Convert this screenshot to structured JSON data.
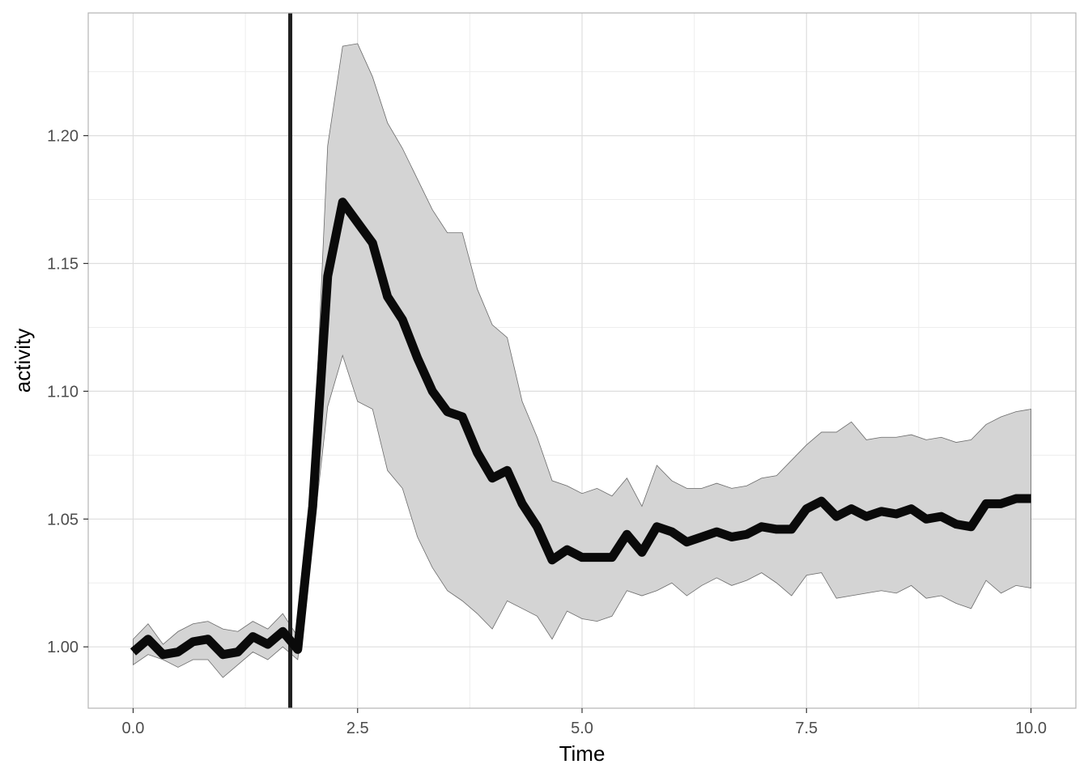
{
  "chart_data": {
    "type": "line",
    "title": "",
    "xlabel": "Time",
    "ylabel": "activity",
    "xlim": [
      -0.5,
      10.5
    ],
    "ylim": [
      0.976,
      1.248
    ],
    "x_ticks": [
      0.0,
      2.5,
      5.0,
      7.5,
      10.0
    ],
    "x_tick_labels": [
      "0.0",
      "2.5",
      "5.0",
      "7.5",
      "10.0"
    ],
    "y_ticks": [
      1.0,
      1.05,
      1.1,
      1.15,
      1.2
    ],
    "y_tick_labels": [
      "1.00",
      "1.05",
      "1.10",
      "1.15",
      "1.20"
    ],
    "grid": true,
    "vline": 1.75,
    "colors": {
      "line": "#0a0a0a",
      "ribbon_fill": "#d4d4d4",
      "ribbon_edge": "#6b6b6b",
      "vline": "#1f1f1f",
      "grid": "#dedede",
      "panel_border": "#b3b3b3"
    },
    "series": [
      {
        "x": [
          0.0,
          0.1667,
          0.3333,
          0.5,
          0.6667,
          0.8333,
          1.0,
          1.1667,
          1.3333,
          1.5,
          1.6667,
          1.8333,
          2.0,
          2.1667,
          2.3333,
          2.5,
          2.6667,
          2.8333,
          3.0,
          3.1667,
          3.3333,
          3.5,
          3.6667,
          3.8333,
          4.0,
          4.1667,
          4.3333,
          4.5,
          4.6667,
          4.8333,
          5.0,
          5.1667,
          5.3333,
          5.5,
          5.6667,
          5.8333,
          6.0,
          6.1667,
          6.3333,
          6.5,
          6.6667,
          6.8333,
          7.0,
          7.1667,
          7.3333,
          7.5,
          7.6667,
          7.8333,
          8.0,
          8.1667,
          8.3333,
          8.5,
          8.6667,
          8.8333,
          9.0,
          9.1667,
          9.3333,
          9.5,
          9.6667,
          9.8333,
          10.0
        ],
        "y": [
          0.998,
          1.003,
          0.997,
          0.998,
          1.002,
          1.003,
          0.997,
          0.998,
          1.004,
          1.001,
          1.006,
          0.999,
          1.055,
          1.145,
          1.174,
          1.166,
          1.158,
          1.137,
          1.128,
          1.113,
          1.1,
          1.092,
          1.09,
          1.076,
          1.066,
          1.069,
          1.056,
          1.047,
          1.034,
          1.038,
          1.035,
          1.035,
          1.035,
          1.044,
          1.037,
          1.047,
          1.045,
          1.041,
          1.043,
          1.045,
          1.043,
          1.044,
          1.047,
          1.046,
          1.046,
          1.054,
          1.057,
          1.051,
          1.054,
          1.051,
          1.053,
          1.052,
          1.054,
          1.05,
          1.051,
          1.048,
          1.047,
          1.056,
          1.056,
          1.058,
          1.058
        ],
        "lower": [
          0.993,
          0.997,
          0.995,
          0.992,
          0.995,
          0.995,
          0.988,
          0.993,
          0.998,
          0.995,
          1.0,
          0.995,
          1.042,
          1.094,
          1.114,
          1.096,
          1.093,
          1.069,
          1.062,
          1.043,
          1.031,
          1.022,
          1.018,
          1.013,
          1.007,
          1.018,
          1.015,
          1.012,
          1.003,
          1.014,
          1.011,
          1.01,
          1.012,
          1.022,
          1.02,
          1.022,
          1.025,
          1.02,
          1.024,
          1.027,
          1.024,
          1.026,
          1.029,
          1.025,
          1.02,
          1.028,
          1.029,
          1.019,
          1.02,
          1.021,
          1.022,
          1.021,
          1.024,
          1.019,
          1.02,
          1.017,
          1.015,
          1.026,
          1.021,
          1.024,
          1.023
        ],
        "upper": [
          1.003,
          1.009,
          1.001,
          1.006,
          1.009,
          1.01,
          1.007,
          1.006,
          1.01,
          1.007,
          1.013,
          1.004,
          1.066,
          1.196,
          1.235,
          1.236,
          1.223,
          1.205,
          1.195,
          1.183,
          1.171,
          1.162,
          1.162,
          1.14,
          1.126,
          1.121,
          1.096,
          1.082,
          1.065,
          1.063,
          1.06,
          1.062,
          1.059,
          1.066,
          1.055,
          1.071,
          1.065,
          1.062,
          1.062,
          1.064,
          1.062,
          1.063,
          1.066,
          1.067,
          1.073,
          1.079,
          1.084,
          1.084,
          1.088,
          1.081,
          1.082,
          1.082,
          1.083,
          1.081,
          1.082,
          1.08,
          1.081,
          1.087,
          1.09,
          1.092,
          1.093
        ]
      }
    ]
  }
}
